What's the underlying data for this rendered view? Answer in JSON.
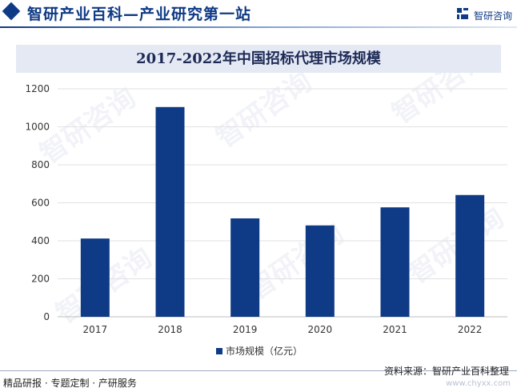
{
  "header": {
    "site_title": "智研产业百科—产业研究第一站",
    "brand": "智研咨询"
  },
  "chart_data": {
    "type": "bar",
    "title": "2017-2022年中国招标代理市场规模",
    "categories": [
      "2017",
      "2018",
      "2019",
      "2020",
      "2021",
      "2022"
    ],
    "series": [
      {
        "name": "市场规模（亿元）",
        "values": [
          412,
          1104,
          518,
          481,
          576,
          641
        ]
      }
    ],
    "ylim": [
      0,
      1200
    ],
    "yticks": [
      0,
      200,
      400,
      600,
      800,
      1000,
      1200
    ],
    "grid": true,
    "legend": "bottom-center",
    "color": "#0f3a85"
  },
  "footer": {
    "left_text": "精品研报 · 专题定制 · 产研服务",
    "source": "资料来源：智研产业百科整理",
    "url": "www.chyxx.com"
  },
  "watermark": "智研咨询"
}
